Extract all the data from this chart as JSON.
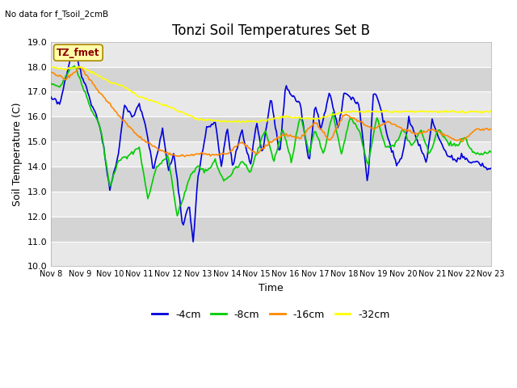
{
  "title": "Tonzi Soil Temperatures Set B",
  "no_data_label": "No data for f_Tsoil_2cmB",
  "tz_fmet_label": "TZ_fmet",
  "xlabel": "Time",
  "ylabel": "Soil Temperature (C)",
  "ylim": [
    10.0,
    19.0
  ],
  "yticks": [
    10.0,
    11.0,
    12.0,
    13.0,
    14.0,
    15.0,
    16.0,
    17.0,
    18.0,
    19.0
  ],
  "xtick_labels": [
    "Nov 8",
    "Nov 9",
    "Nov 10",
    "Nov 11",
    "Nov 12",
    "Nov 13",
    "Nov 14",
    "Nov 15",
    "Nov 16",
    "Nov 17",
    "Nov 18",
    "Nov 19",
    "Nov 20",
    "Nov 21",
    "Nov 22",
    "Nov 23"
  ],
  "colors": {
    "4cm": "#0000dd",
    "8cm": "#00cc00",
    "16cm": "#ff8800",
    "32cm": "#ffff00"
  },
  "legend_labels": [
    "-4cm",
    "-8cm",
    "-16cm",
    "-32cm"
  ],
  "band_colors": [
    "#e8e8e8",
    "#d4d4d4"
  ],
  "grid_color": "#e0e0e0",
  "title_fontsize": 12,
  "label_fontsize": 9,
  "tick_fontsize": 8,
  "linewidth": 1.2
}
